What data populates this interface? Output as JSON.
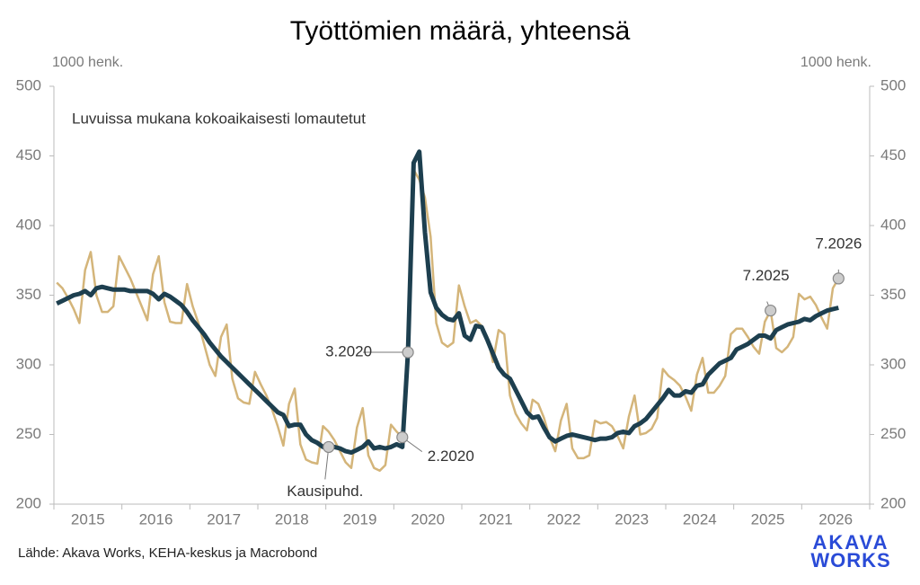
{
  "chart_data": {
    "type": "line",
    "title": "Työttömien määrä, yhteensä",
    "y_label": "1000 henk.",
    "y2_label": "1000 henk.",
    "note": "Luvuissa mukana kokoaikaisesti lomautetut",
    "source": "Lähde: Akava Works, KEHA-keskus ja Macrobond",
    "logo": [
      "AKAVA",
      "WORKS"
    ],
    "xlim": [
      2015,
      2027
    ],
    "xticks": [
      2015,
      2016,
      2017,
      2018,
      2019,
      2020,
      2021,
      2022,
      2023,
      2024,
      2025,
      2026
    ],
    "ylim": [
      200,
      500
    ],
    "yticks": [
      200,
      250,
      300,
      350,
      400,
      450,
      500
    ],
    "y2lim": [
      200,
      500
    ],
    "y2ticks": [
      200,
      250,
      300,
      350,
      400,
      450,
      500
    ],
    "x": [
      "1.2015",
      "2.2015",
      "3.2015",
      "4.2015",
      "5.2015",
      "6.2015",
      "7.2015",
      "8.2015",
      "9.2015",
      "10.2015",
      "11.2015",
      "12.2015",
      "1.2016",
      "2.2016",
      "3.2016",
      "4.2016",
      "5.2016",
      "6.2016",
      "7.2016",
      "8.2016",
      "9.2016",
      "10.2016",
      "11.2016",
      "12.2016",
      "1.2017",
      "2.2017",
      "3.2017",
      "4.2017",
      "5.2017",
      "6.2017",
      "7.2017",
      "8.2017",
      "9.2017",
      "10.2017",
      "11.2017",
      "12.2017",
      "1.2018",
      "2.2018",
      "3.2018",
      "4.2018",
      "5.2018",
      "6.2018",
      "7.2018",
      "8.2018",
      "9.2018",
      "10.2018",
      "11.2018",
      "12.2018",
      "1.2019",
      "2.2019",
      "3.2019",
      "4.2019",
      "5.2019",
      "6.2019",
      "7.2019",
      "8.2019",
      "9.2019",
      "10.2019",
      "11.2019",
      "12.2019",
      "1.2020",
      "2.2020",
      "3.2020",
      "4.2020",
      "5.2020",
      "6.2020",
      "7.2020",
      "8.2020",
      "9.2020",
      "10.2020",
      "11.2020",
      "12.2020",
      "1.2021",
      "2.2021",
      "3.2021",
      "4.2021",
      "5.2021",
      "6.2021",
      "7.2021",
      "8.2021",
      "9.2021",
      "10.2021",
      "11.2021",
      "12.2021",
      "1.2022",
      "2.2022",
      "3.2022",
      "4.2022",
      "5.2022",
      "6.2022",
      "7.2022",
      "8.2022",
      "9.2022",
      "10.2022",
      "11.2022",
      "12.2022",
      "1.2023",
      "2.2023",
      "3.2023",
      "4.2023",
      "5.2023",
      "6.2023",
      "7.2023",
      "8.2023",
      "9.2023",
      "10.2023",
      "11.2023",
      "12.2023",
      "1.2024",
      "2.2024",
      "3.2024",
      "4.2024",
      "5.2024",
      "6.2024",
      "7.2024",
      "8.2024",
      "9.2024",
      "10.2024",
      "11.2024",
      "12.2024",
      "1.2025",
      "2.2025",
      "3.2025",
      "4.2025",
      "5.2025",
      "6.2025",
      "7.2025",
      "8.2025",
      "9.2025",
      "10.2025",
      "11.2025",
      "12.2025",
      "1.2026",
      "2.2026",
      "3.2026",
      "4.2026",
      "5.2026",
      "6.2026",
      "7.2026"
    ],
    "series": [
      {
        "color": "#d4b57a",
        "width": 2.5,
        "values": [
          359,
          355,
          348,
          340,
          330,
          368,
          381,
          350,
          338,
          338,
          342,
          378,
          370,
          362,
          352,
          342,
          332,
          365,
          378,
          345,
          331,
          330,
          330,
          358,
          342,
          330,
          315,
          300,
          292,
          320,
          329,
          290,
          276,
          273,
          272,
          295,
          286,
          278,
          268,
          256,
          242,
          272,
          283,
          243,
          232,
          230,
          229,
          256,
          252,
          246,
          238,
          230,
          226,
          255,
          269,
          235,
          226,
          224,
          228,
          257,
          252,
          248,
          305,
          440,
          433,
          420,
          392,
          330,
          316,
          313,
          316,
          357,
          342,
          330,
          332,
          328,
          320,
          302,
          325,
          322,
          278,
          265,
          258,
          253,
          275,
          272,
          262,
          248,
          238,
          260,
          272,
          240,
          233,
          233,
          235,
          260,
          258,
          259,
          256,
          249,
          240,
          263,
          278,
          250,
          251,
          254,
          262,
          297,
          292,
          289,
          285,
          277,
          267,
          293,
          305,
          280,
          280,
          285,
          292,
          322,
          326,
          326,
          320,
          313,
          308,
          331,
          339,
          312,
          309,
          313,
          320,
          351,
          347,
          349,
          343,
          334,
          326,
          355,
          362
        ]
      },
      {
        "color": "#1d3f4f",
        "width": 5,
        "values": [
          344,
          346,
          348,
          350,
          351,
          353,
          350,
          355,
          356,
          355,
          354,
          354,
          354,
          353,
          353,
          353,
          353,
          351,
          347,
          351,
          349,
          346,
          343,
          338,
          332,
          327,
          322,
          316,
          311,
          306,
          302,
          298,
          294,
          290,
          286,
          282,
          278,
          274,
          270,
          266,
          264,
          256,
          257,
          257,
          250,
          246,
          244,
          241,
          241,
          241,
          240,
          238,
          237,
          239,
          241,
          245,
          240,
          241,
          240,
          241,
          243,
          241,
          309,
          445,
          453,
          395,
          352,
          341,
          336,
          333,
          332,
          337,
          321,
          318,
          328,
          327,
          318,
          308,
          298,
          293,
          290,
          282,
          274,
          266,
          262,
          263,
          255,
          248,
          245,
          247,
          249,
          250,
          249,
          248,
          247,
          246,
          247,
          247,
          248,
          251,
          252,
          251,
          256,
          258,
          261,
          266,
          271,
          276,
          282,
          278,
          278,
          281,
          280,
          285,
          286,
          293,
          297,
          301,
          303,
          305,
          311,
          313,
          315,
          318,
          321,
          321,
          319,
          325,
          327,
          329,
          330,
          331,
          333,
          332,
          335,
          337,
          339,
          340,
          341
        ]
      }
    ],
    "annotations": [
      {
        "text": "3.2020",
        "series": 1,
        "x": "3.2020"
      },
      {
        "text": "2.2020",
        "series": 0,
        "x": "2.2020"
      },
      {
        "text": "7.2025",
        "series": 0,
        "x": "7.2025"
      },
      {
        "text": "7.2026",
        "series": 0,
        "x": "7.2026"
      },
      {
        "text": "Kausipuhd.",
        "series": 1,
        "x": "1.2019"
      }
    ]
  }
}
